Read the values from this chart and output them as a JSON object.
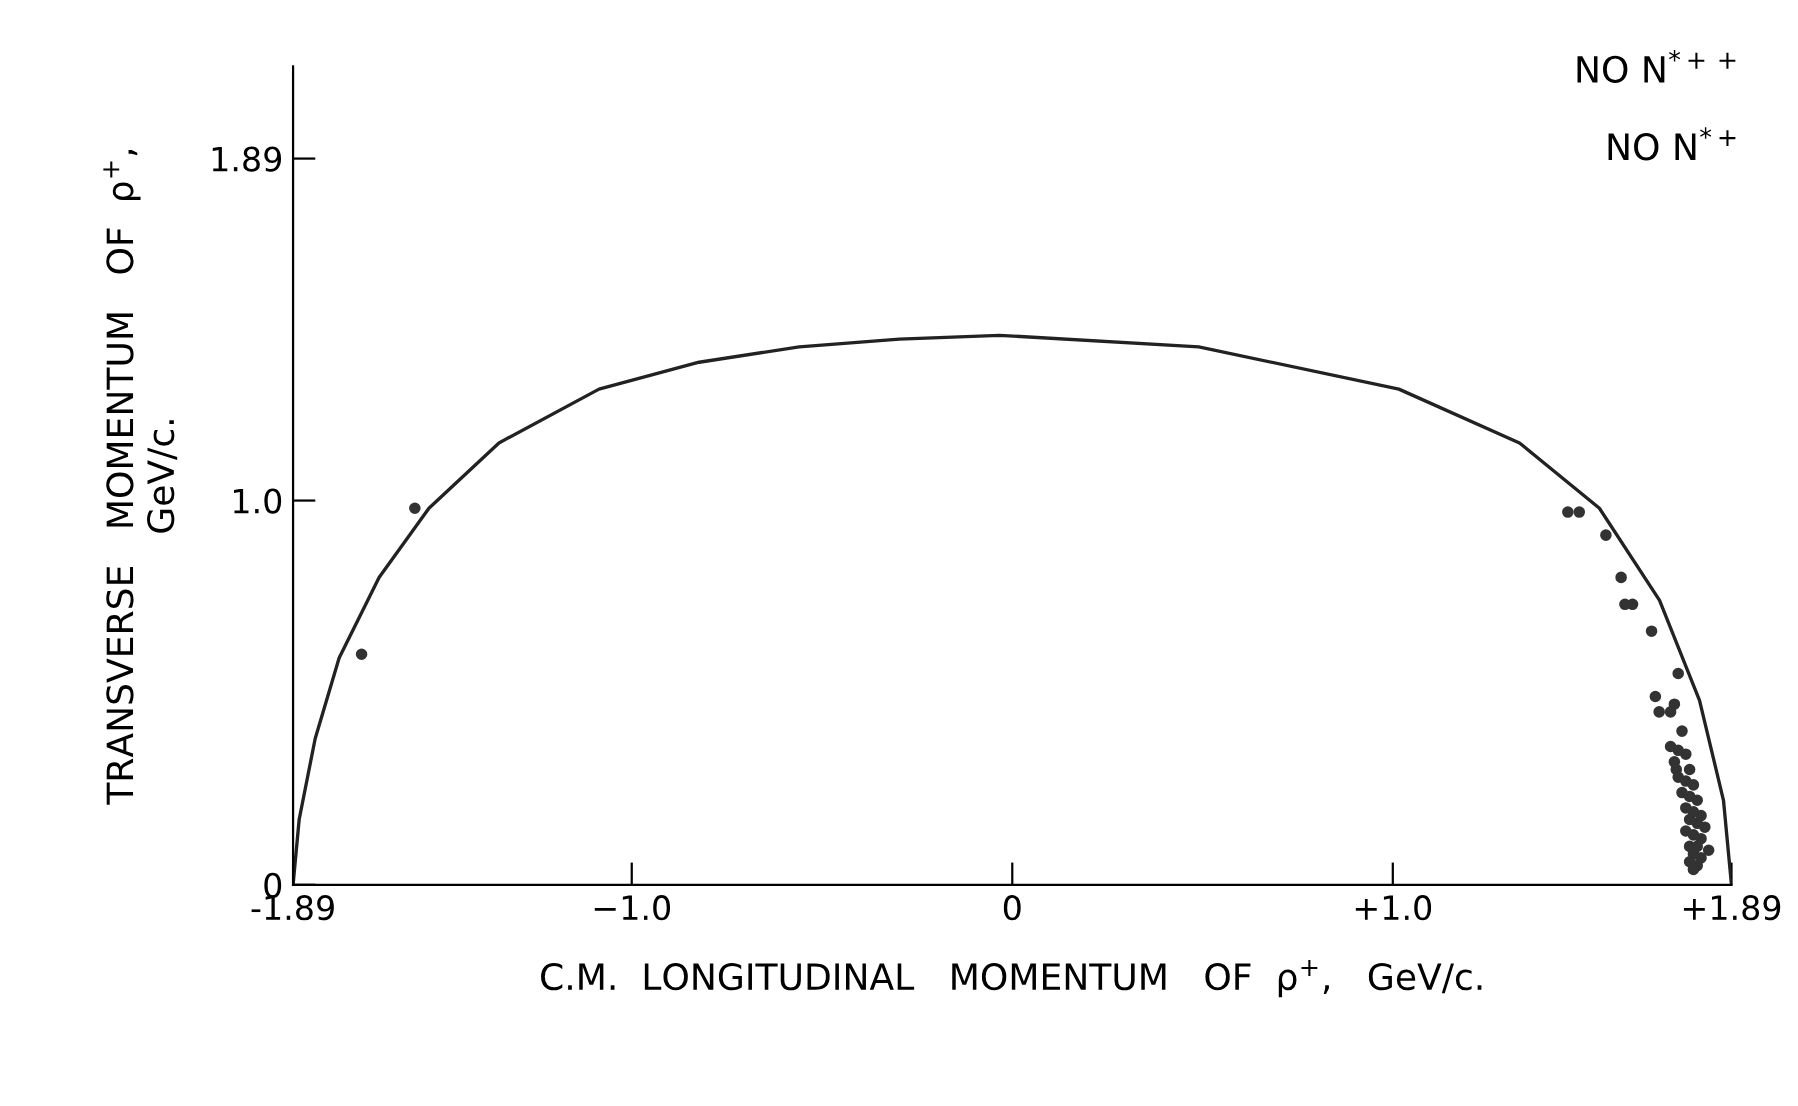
{
  "chart_data": {
    "type": "scatter",
    "xlabel": "C.M.  LONGITUDINAL   MOMENTUM   OF  ρ$^{+}$,   GeV/c.",
    "ylabel": "TRANSVERSE   MOMENTUM   OF  ρ$^{+}$,\nGeV/c.",
    "annotations": [
      "NO N$^{*++}$",
      "NO N$^{*+}$"
    ],
    "xlim": [
      -1.89,
      1.89
    ],
    "ylim": [
      0,
      2.13
    ],
    "xticks": [
      -1.89,
      {
        "value": -1.0,
        "label": "−1.0"
      },
      0,
      {
        "value": 1.0,
        "label": "+1.0"
      },
      {
        "value": 1.89,
        "label": "+1.89"
      }
    ],
    "yticks": [
      0,
      {
        "value": 1.0,
        "label": "1.0"
      },
      1.89
    ],
    "grid": false,
    "legend": false,
    "series": [
      {
        "type": "line",
        "marker": "none",
        "color": "#222222",
        "x": [
          -1.89,
          -1.874,
          -1.832,
          -1.769,
          -1.664,
          -1.533,
          -1.349,
          -1.086,
          -0.823,
          -0.56,
          -0.297,
          -0.034,
          0.49,
          1.016,
          1.333,
          1.543,
          1.701,
          1.806,
          1.869,
          1.89
        ],
        "values": [
          0,
          0.17,
          0.38,
          0.59,
          0.8,
          0.98,
          1.15,
          1.29,
          1.36,
          1.4,
          1.42,
          1.43,
          1.4,
          1.29,
          1.15,
          0.98,
          0.74,
          0.48,
          0.22,
          0
        ]
      },
      {
        "marker": "circle",
        "color": "#333333",
        "x": [
          -1.71,
          -1.57,
          1.46,
          1.49,
          1.56,
          1.6,
          1.61,
          1.63,
          1.68,
          1.75,
          1.69,
          1.74,
          1.7,
          1.73,
          1.76,
          1.73,
          1.75,
          1.77,
          1.74,
          1.745,
          1.78,
          1.75,
          1.77,
          1.79,
          1.76,
          1.78,
          1.8,
          1.77,
          1.79,
          1.81,
          1.78,
          1.8,
          1.82,
          1.77,
          1.79,
          1.81,
          1.78,
          1.8,
          1.83,
          1.79,
          1.81,
          1.78,
          1.8,
          1.79
        ],
        "values": [
          0.6,
          0.98,
          0.97,
          0.97,
          0.91,
          0.8,
          0.73,
          0.73,
          0.66,
          0.55,
          0.49,
          0.47,
          0.45,
          0.45,
          0.4,
          0.36,
          0.35,
          0.34,
          0.32,
          0.3,
          0.3,
          0.28,
          0.27,
          0.26,
          0.24,
          0.23,
          0.22,
          0.2,
          0.19,
          0.18,
          0.17,
          0.16,
          0.15,
          0.14,
          0.13,
          0.12,
          0.1,
          0.1,
          0.09,
          0.08,
          0.07,
          0.06,
          0.05,
          0.04
        ]
      }
    ]
  }
}
